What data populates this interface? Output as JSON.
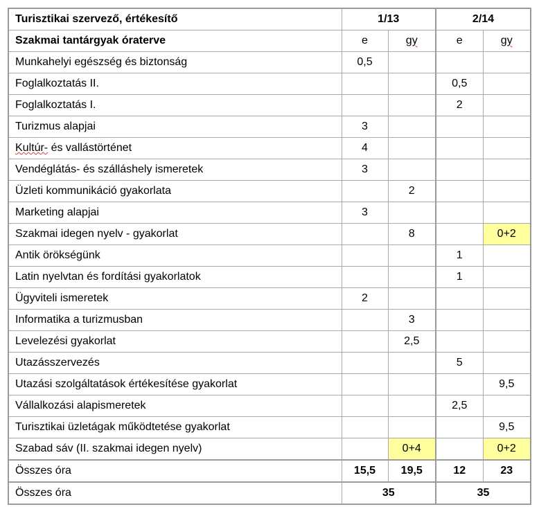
{
  "header": {
    "title": "Turisztikai szervező, értékesítő",
    "subtitle": "Szakmai tantárgyak óraterve",
    "year1": "1/13",
    "year2": "2/14",
    "col_e": "e",
    "col_gy": "gy"
  },
  "highlight_color": "#ffff9e",
  "rows": [
    {
      "name": "Munkahelyi egészség és biztonság",
      "e1": "0,5",
      "gy1": "",
      "e2": "",
      "gy2": ""
    },
    {
      "name": "Foglalkoztatás II.",
      "e1": "",
      "gy1": "",
      "e2": "0,5",
      "gy2": ""
    },
    {
      "name": "Foglalkoztatás I.",
      "e1": "",
      "gy1": "",
      "e2": "2",
      "gy2": ""
    },
    {
      "name": "Turizmus alapjai",
      "e1": "3",
      "gy1": "",
      "e2": "",
      "gy2": ""
    },
    {
      "name": "Kultúr-  és vallástörténet",
      "e1": "4",
      "gy1": "",
      "e2": "",
      "gy2": ""
    },
    {
      "name": "Vendéglátás- és szálláshely ismeretek",
      "e1": "3",
      "gy1": "",
      "e2": "",
      "gy2": ""
    },
    {
      "name": "Üzleti kommunikáció gyakorlata",
      "e1": "",
      "gy1": "2",
      "e2": "",
      "gy2": ""
    },
    {
      "name": "Marketing alapjai",
      "e1": "3",
      "gy1": "",
      "e2": "",
      "gy2": ""
    },
    {
      "name": "Szakmai idegen nyelv - gyakorlat",
      "e1": "",
      "gy1": "8",
      "e2": "",
      "gy2": "0+2"
    },
    {
      "name": "Antik örökségünk",
      "e1": "",
      "gy1": "",
      "e2": "1",
      "gy2": ""
    },
    {
      "name": "Latin nyelvtan és fordítási gyakorlatok",
      "e1": "",
      "gy1": "",
      "e2": "1",
      "gy2": ""
    },
    {
      "name": "Ügyviteli ismeretek",
      "e1": "2",
      "gy1": "",
      "e2": "",
      "gy2": ""
    },
    {
      "name": "Informatika a turizmusban",
      "e1": "",
      "gy1": "3",
      "e2": "",
      "gy2": ""
    },
    {
      "name": "Levelezési  gyakorlat",
      "e1": "",
      "gy1": "2,5",
      "e2": "",
      "gy2": ""
    },
    {
      "name": "Utazásszervezés",
      "e1": "",
      "gy1": "",
      "e2": "5",
      "gy2": ""
    },
    {
      "name": "Utazási szolgáltatások értékesítése gyakorlat",
      "e1": "",
      "gy1": "",
      "e2": "",
      "gy2": "9,5"
    },
    {
      "name": "Vállalkozási alapismeretek",
      "e1": "",
      "gy1": "",
      "e2": "2,5",
      "gy2": ""
    },
    {
      "name": "Turisztikai üzletágak működtetése gyakorlat",
      "e1": "",
      "gy1": "",
      "e2": "",
      "gy2": "9,5"
    },
    {
      "name": "Szabad sáv (II. szakmai idegen nyelv)",
      "e1": "",
      "gy1": "0+4",
      "e2": "",
      "gy2": "0+2"
    }
  ],
  "totals": {
    "label": "Összes óra",
    "e1": "15,5",
    "gy1": "19,5",
    "e2": "12",
    "gy2": "23"
  },
  "grand_totals": {
    "label": "Összes óra",
    "y1": "35",
    "y2": "35"
  }
}
